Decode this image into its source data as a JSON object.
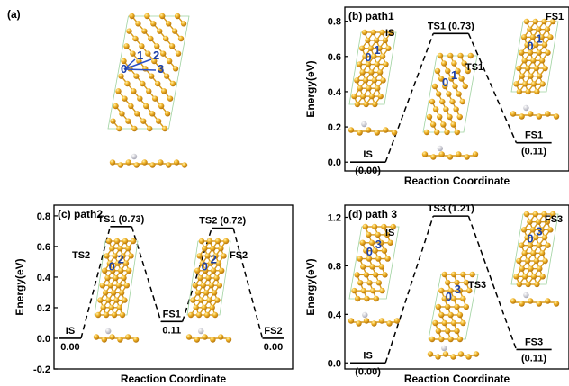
{
  "panel_a": {
    "label": "(a)",
    "sites": [
      "0",
      "1",
      "2",
      "3"
    ]
  },
  "chart_data": [
    {
      "type": "line",
      "panel": "(b) path1",
      "xlabel": "Reaction Coordinate",
      "ylabel": "Energy(eV)",
      "ylim": [
        -0.05,
        0.88
      ],
      "yticks": [
        "0.0",
        "0.2",
        "0.4",
        "0.6",
        "0.8"
      ],
      "ytick_values": [
        0.0,
        0.2,
        0.4,
        0.6,
        0.8
      ],
      "x": [
        "IS",
        "TS1",
        "FS1"
      ],
      "y": [
        0.0,
        0.73,
        0.11
      ],
      "value_labels": [
        "(0.00)",
        "TS1 (0.73)",
        "(0.11)"
      ],
      "state_labels": [
        "IS",
        "TS1",
        "FS1"
      ],
      "inset_labels": [
        "IS",
        "TS1",
        "FS1"
      ],
      "sites": [
        "0",
        "1"
      ]
    },
    {
      "type": "line",
      "panel": "(c) path2",
      "xlabel": "Reaction Coordinate",
      "ylabel": "Energy(eV)",
      "ylim": [
        -0.2,
        0.87
      ],
      "yticks": [
        "-0.2",
        "0.0",
        "0.2",
        "0.4",
        "0.6",
        "0.8"
      ],
      "ytick_values": [
        -0.2,
        0.0,
        0.2,
        0.4,
        0.6,
        0.8
      ],
      "x": [
        "IS",
        "TS1",
        "FS1",
        "TS2",
        "FS2"
      ],
      "y": [
        0.0,
        0.73,
        0.11,
        0.72,
        0.0
      ],
      "value_labels": [
        "0.00",
        "TS1 (0.73)",
        "0.11",
        "TS2 (0.72)",
        "0.00"
      ],
      "state_labels": [
        "IS",
        "TS1",
        "FS1",
        "TS2",
        "FS2"
      ],
      "inset_labels": [
        "TS2",
        "FS2"
      ],
      "sites": [
        "0",
        "2"
      ]
    },
    {
      "type": "line",
      "panel": "(d) path 3",
      "xlabel": "Reaction Coordinate",
      "ylabel": "Energy(eV)",
      "ylim": [
        -0.05,
        1.3
      ],
      "yticks": [
        "0.0",
        "0.4",
        "0.8",
        "1.2"
      ],
      "ytick_values": [
        0.0,
        0.4,
        0.8,
        1.2
      ],
      "x": [
        "IS",
        "TS3",
        "FS3"
      ],
      "y": [
        0.0,
        1.21,
        0.11
      ],
      "value_labels": [
        "(0.00)",
        "TS3 (1.21)",
        "(0.11)"
      ],
      "state_labels": [
        "IS",
        "TS3",
        "FS3"
      ],
      "inset_labels": [
        "IS",
        "TS3",
        "FS3"
      ],
      "sites": [
        "0",
        "3"
      ]
    }
  ],
  "colors": {
    "atom": "#e8a317",
    "atom_dark": "#b8780a",
    "bond": "#d79a1a",
    "cell": "#9fd29f",
    "hydrogen": "#e6e6ee",
    "site_label": "#1b3fa8",
    "line": "#000000"
  }
}
